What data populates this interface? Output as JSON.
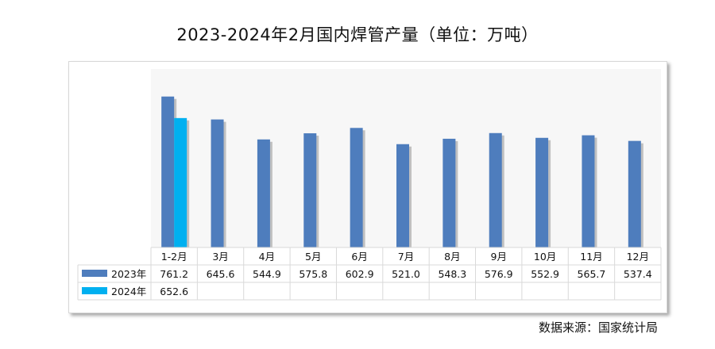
{
  "title": "2023-2024年2月国内焊管产量（单位：万吨）",
  "source": "数据来源：国家统计局",
  "chart_data": {
    "type": "bar",
    "title": "2023-2024年2月国内焊管产量（单位：万吨）",
    "categories": [
      "1-2月",
      "3月",
      "4月",
      "5月",
      "6月",
      "7月",
      "8月",
      "9月",
      "10月",
      "11月",
      "12月"
    ],
    "series": [
      {
        "name": "2023年",
        "color": "#4e7dbd",
        "values": [
          761.2,
          645.6,
          544.9,
          575.8,
          602.9,
          521.0,
          548.3,
          576.9,
          552.9,
          565.7,
          537.4
        ],
        "labels": [
          "761.2",
          "645.6",
          "544.9",
          "575.8",
          "602.9",
          "521.0",
          "548.3",
          "576.9",
          "552.9",
          "565.7",
          "537.4"
        ]
      },
      {
        "name": "2024年",
        "color": "#00b0f0",
        "values": [
          652.6,
          null,
          null,
          null,
          null,
          null,
          null,
          null,
          null,
          null,
          null
        ],
        "labels": [
          "652.6",
          "",
          "",
          "",
          "",
          "",
          "",
          "",
          "",
          "",
          ""
        ]
      }
    ],
    "ylim": [
      0,
      900
    ],
    "legend": "data-table",
    "grid": false,
    "plot_background": "#f7f7f7"
  }
}
